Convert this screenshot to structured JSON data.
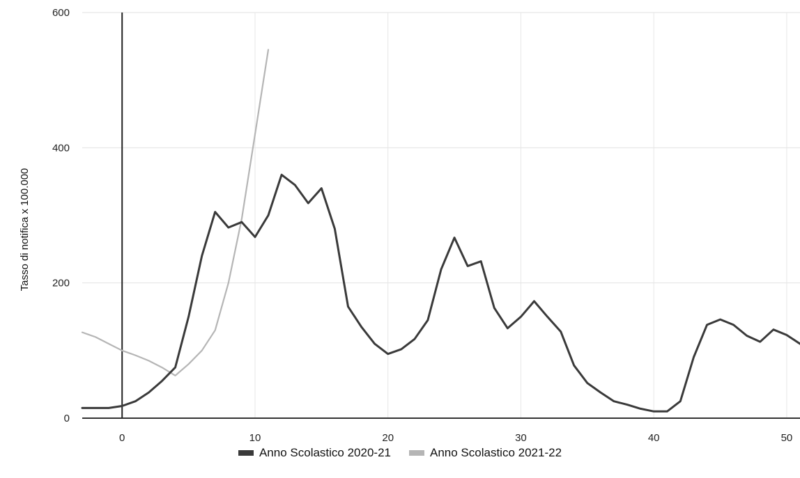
{
  "chart_data": {
    "type": "line",
    "title": "",
    "xlabel": "",
    "ylabel": "Tasso di notifica x 100.000",
    "xlim": [
      -3,
      51
    ],
    "ylim": [
      0,
      600
    ],
    "xticks": [
      0,
      10,
      20,
      30,
      40,
      50
    ],
    "yticks": [
      0,
      200,
      400,
      600
    ],
    "grid": true,
    "legend_position": "bottom",
    "series": [
      {
        "name": "Anno Scolastico 2020-21",
        "color": "#3a3a3a",
        "x": [
          -3,
          -2,
          -1,
          0,
          1,
          2,
          3,
          4,
          5,
          6,
          7,
          8,
          9,
          10,
          11,
          12,
          13,
          14,
          15,
          16,
          17,
          18,
          19,
          20,
          21,
          22,
          23,
          24,
          25,
          26,
          27,
          28,
          29,
          30,
          31,
          32,
          33,
          34,
          35,
          36,
          37,
          38,
          39,
          40,
          41,
          42,
          43,
          44,
          45,
          46,
          47,
          48,
          49,
          50,
          51
        ],
        "y": [
          15,
          15,
          15,
          18,
          25,
          38,
          55,
          75,
          150,
          240,
          305,
          282,
          290,
          268,
          300,
          360,
          345,
          318,
          340,
          280,
          165,
          135,
          110,
          95,
          102,
          117,
          145,
          220,
          267,
          225,
          232,
          163,
          133,
          150,
          173,
          150,
          128,
          78,
          52,
          38,
          25,
          20,
          14,
          10,
          10,
          25,
          90,
          138,
          146,
          138,
          122,
          113,
          131,
          123,
          110
        ]
      },
      {
        "name": "Anno Scolastico 2021-22",
        "color": "#b5b5b5",
        "x": [
          -3,
          -2,
          -1,
          0,
          1,
          2,
          3,
          4,
          5,
          6,
          7,
          8,
          9,
          10,
          11
        ],
        "y": [
          127,
          120,
          110,
          100,
          93,
          85,
          75,
          63,
          80,
          100,
          130,
          200,
          295,
          420,
          545
        ]
      }
    ]
  }
}
